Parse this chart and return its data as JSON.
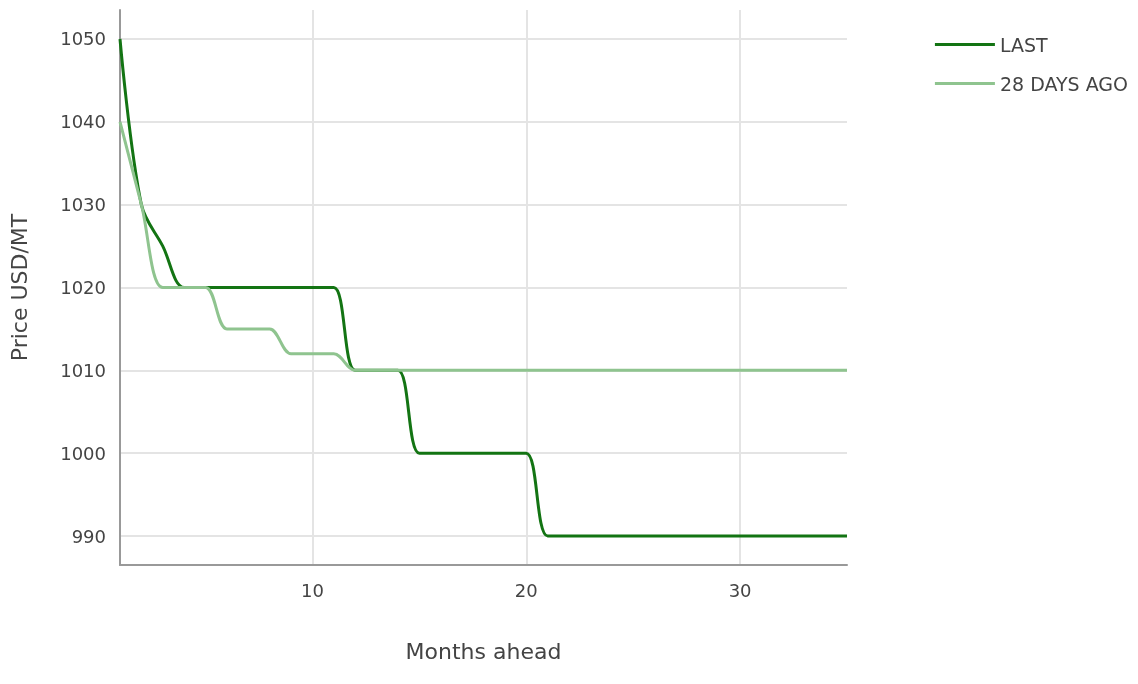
{
  "chart_data": {
    "type": "line",
    "xlabel": "Months ahead",
    "ylabel": "Price USD/MT",
    "x": [
      1,
      2,
      3,
      4,
      5,
      6,
      7,
      8,
      9,
      10,
      11,
      12,
      13,
      14,
      15,
      16,
      17,
      18,
      19,
      20,
      21,
      22,
      23,
      24,
      25,
      26,
      27,
      28,
      29,
      30,
      31,
      32,
      33,
      34,
      35
    ],
    "series": [
      {
        "name": "LAST",
        "color": "#137413",
        "values": [
          1050,
          1030,
          1025,
          1020,
          1020,
          1020,
          1020,
          1020,
          1020,
          1020,
          1020,
          1010,
          1010,
          1010,
          1000,
          1000,
          1000,
          1000,
          1000,
          1000,
          990,
          990,
          990,
          990,
          990,
          990,
          990,
          990,
          990,
          990,
          990,
          990,
          990,
          990,
          990
        ]
      },
      {
        "name": "28 DAYS AGO",
        "color": "#8fc48f",
        "values": [
          1040,
          1030,
          1020,
          1020,
          1020,
          1015,
          1015,
          1015,
          1012,
          1012,
          1012,
          1010,
          1010,
          1010,
          1010,
          1010,
          1010,
          1010,
          1010,
          1010,
          1010,
          1010,
          1010,
          1010,
          1010,
          1010,
          1010,
          1010,
          1010,
          1010,
          1010,
          1010,
          1010,
          1010,
          1010
        ]
      }
    ],
    "xlim": [
      1,
      35
    ],
    "xticks": [
      10,
      20,
      30
    ],
    "ylim": [
      986.5,
      1053.5
    ],
    "yticks": [
      990,
      1000,
      1010,
      1020,
      1030,
      1040,
      1050
    ],
    "grid": true,
    "legend": "top right",
    "marker": "none",
    "line_style": "solid"
  }
}
